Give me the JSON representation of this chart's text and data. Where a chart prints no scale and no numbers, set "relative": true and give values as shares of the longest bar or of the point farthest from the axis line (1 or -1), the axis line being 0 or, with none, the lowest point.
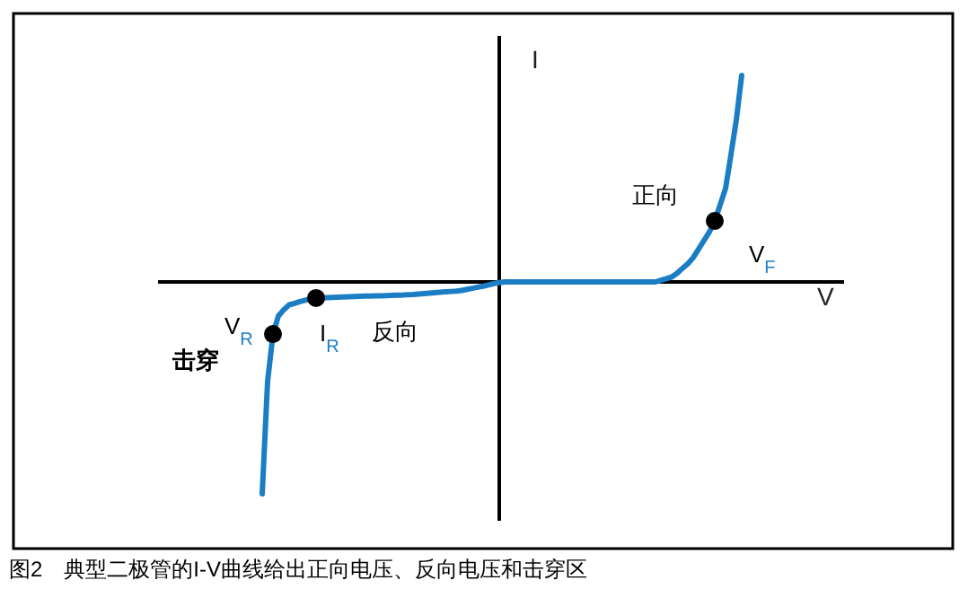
{
  "chart_data": {
    "type": "line",
    "relative": true,
    "xlabel": "V",
    "ylabel": "I",
    "categories": [
      null,
      null,
      null,
      null,
      null,
      null,
      null,
      null,
      null,
      null,
      null,
      null,
      null,
      null,
      null,
      null,
      null,
      null,
      null,
      null,
      null,
      null,
      null,
      null,
      null,
      null,
      null,
      null,
      null,
      null,
      null,
      null,
      null,
      null,
      null,
      null,
      null,
      null,
      null,
      null,
      null,
      null,
      null,
      null,
      null,
      null,
      null,
      null,
      null,
      null,
      null,
      null,
      null,
      null,
      null,
      null,
      null,
      null,
      null,
      null,
      null,
      null,
      null,
      null,
      null,
      null,
      null,
      null,
      null,
      null,
      null,
      null,
      null,
      null,
      null,
      null,
      null,
      null,
      null,
      null,
      null,
      null,
      null,
      null,
      null,
      null,
      null,
      null,
      null,
      null
    ],
    "series": [
      {
        "color": "#1b7dc4",
        "values": [
          -1.0,
          -0.47,
          -0.246,
          -0.161,
          -0.131,
          -0.108,
          -0.101,
          -0.093,
          -0.086,
          -0.079,
          -0.076,
          -0.075,
          -0.074,
          -0.073,
          -0.072,
          -0.071,
          -0.07,
          -0.069,
          -0.068,
          -0.067,
          -0.067,
          -0.066,
          -0.066,
          -0.065,
          -0.064,
          -0.063,
          -0.062,
          -0.06,
          -0.059,
          -0.057,
          -0.055,
          -0.053,
          -0.051,
          -0.049,
          -0.047,
          -0.045,
          -0.043,
          -0.04,
          -0.035,
          -0.03,
          -0.025,
          -0.02,
          -0.014,
          -0.008,
          -0.003,
          0,
          0,
          0,
          0,
          0,
          0,
          0,
          0,
          0,
          0,
          0,
          0,
          0,
          0,
          0,
          0,
          0,
          0,
          0,
          0,
          0,
          0,
          0,
          0,
          0,
          0,
          0,
          0,
          0,
          0.008,
          0.015,
          0.023,
          0.041,
          0.064,
          0.086,
          0.115,
          0.155,
          0.196,
          0.236,
          0.288,
          0.364,
          0.441,
          0.6,
          0.765,
          0.975
        ]
      },
      {
        "color": "#000000",
        "marker": "circle",
        "values": [
          null,
          null,
          -0.246,
          null,
          null,
          null,
          null,
          null,
          null,
          null,
          -0.076,
          null,
          null,
          null,
          null,
          null,
          null,
          null,
          null,
          null,
          null,
          null,
          null,
          null,
          null,
          null,
          null,
          null,
          null,
          null,
          null,
          null,
          null,
          null,
          null,
          null,
          null,
          null,
          null,
          null,
          null,
          null,
          null,
          null,
          null,
          null,
          null,
          null,
          null,
          null,
          null,
          null,
          null,
          null,
          null,
          null,
          null,
          null,
          null,
          null,
          null,
          null,
          null,
          null,
          null,
          null,
          null,
          null,
          null,
          null,
          null,
          null,
          null,
          null,
          null,
          null,
          null,
          null,
          null,
          null,
          null,
          null,
          null,
          null,
          0.288,
          null,
          null,
          null,
          null,
          null
        ]
      }
    ],
    "annotations": [
      "正向",
      "V$_{F}$",
      "V$_{R}$",
      "I$_{R}$",
      "反向",
      "击穿",
      "图2　典型二极管的I-V曲线给出正向电压、反向电压和击穿区"
    ]
  }
}
